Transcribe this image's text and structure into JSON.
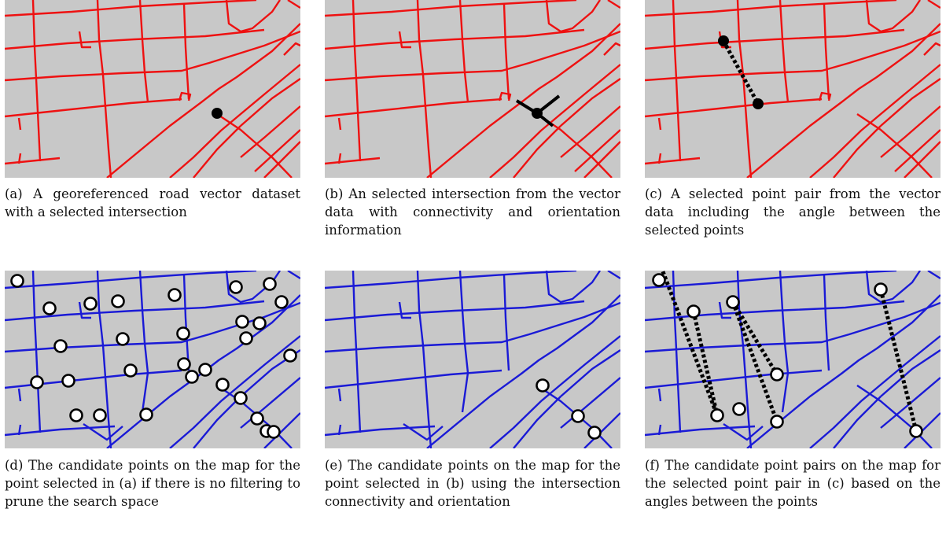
{
  "colors": {
    "map_background": "#c8c8c8",
    "road_red": "#ee1111",
    "road_blue": "#1a1ad6",
    "marker": "#000000",
    "candidate_fill": "#ffffff"
  },
  "panels": [
    {
      "id": "a",
      "caption": "(a) A georeferenced road vector dataset with a selected intersection",
      "road_color": "red"
    },
    {
      "id": "b",
      "caption": "(b) An selected intersection from the vector data with connectivity and orientation information",
      "road_color": "red"
    },
    {
      "id": "c",
      "caption": "(c) A selected point pair from the vector data including the angle between the selected points",
      "road_color": "red"
    },
    {
      "id": "d",
      "caption": "(d) The candidate points on the map for the point selected in (a) if there is no filtering to prune the search space",
      "road_color": "blue"
    },
    {
      "id": "e",
      "caption": "(e) The candidate points on the map for the point selected in (b) using the intersection connectivity and orientation",
      "road_color": "blue"
    },
    {
      "id": "f",
      "caption": "(f) The candidate point pairs on the map for the selected point pair in (c) based on the angles between the points",
      "road_color": "blue"
    }
  ]
}
